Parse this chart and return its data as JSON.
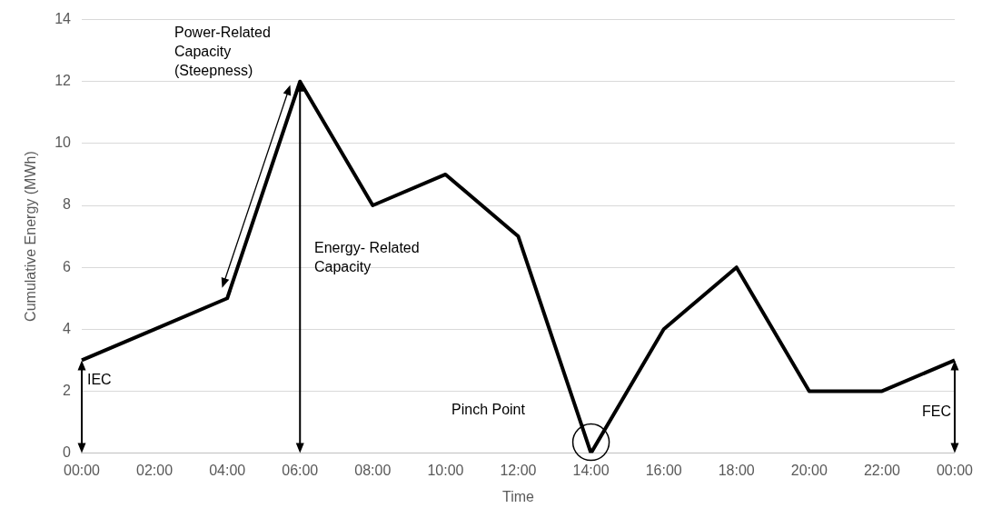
{
  "chart_data": {
    "type": "line",
    "xlabel": "Time",
    "ylabel": "Cumulative Energy (MWh)",
    "categories": [
      "00:00",
      "02:00",
      "04:00",
      "06:00",
      "08:00",
      "10:00",
      "12:00",
      "14:00",
      "16:00",
      "18:00",
      "20:00",
      "22:00",
      "00:00"
    ],
    "series": [
      {
        "color": "#000000",
        "values": [
          3,
          4,
          5,
          12,
          8,
          9,
          7,
          0,
          4,
          6,
          2,
          2,
          3
        ]
      }
    ],
    "ylim": [
      0,
      14
    ],
    "yticks": [
      0,
      2,
      4,
      6,
      8,
      10,
      12,
      14
    ],
    "grid": "y",
    "legend": false,
    "marker": "none",
    "line_style": "solid",
    "annotations": [
      "Power-Related Capacity (Steepness)",
      "Energy- Related Capacity",
      "IEC",
      "Pinch Point",
      "FEC"
    ]
  }
}
